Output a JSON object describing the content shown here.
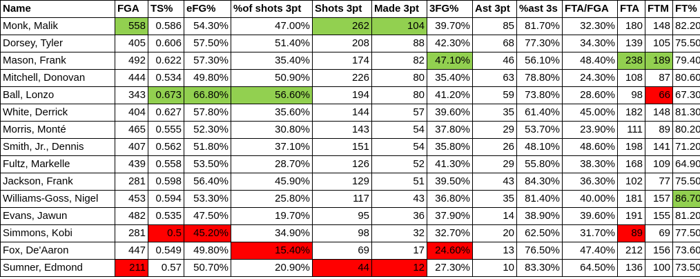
{
  "colors": {
    "highlight_best": "#92d050",
    "highlight_worst": "#ff0000"
  },
  "columns": [
    "Name",
    "FGA",
    "TS%",
    "eFG%",
    "%of shots 3pt",
    "Shots 3pt",
    "Made 3pt",
    "3FG%",
    "Ast 3pt",
    "%ast 3s",
    "FTA/FGA",
    "FTA",
    "FTM",
    "FT%"
  ],
  "rows": [
    {
      "cells": [
        "Monk, Malik",
        "558",
        "0.586",
        "54.30%",
        "47.00%",
        "262",
        "104",
        "39.70%",
        "85",
        "81.70%",
        "32.30%",
        "180",
        "148",
        "82.20%"
      ],
      "hl": {
        "1": "green",
        "5": "green",
        "6": "green"
      }
    },
    {
      "cells": [
        "Dorsey, Tyler",
        "405",
        "0.606",
        "57.50%",
        "51.40%",
        "208",
        "88",
        "42.30%",
        "68",
        "77.30%",
        "34.30%",
        "139",
        "105",
        "75.50%"
      ],
      "hl": {}
    },
    {
      "cells": [
        "Mason, Frank",
        "492",
        "0.622",
        "57.30%",
        "35.40%",
        "174",
        "82",
        "47.10%",
        "46",
        "56.10%",
        "48.40%",
        "238",
        "189",
        "79.40%"
      ],
      "hl": {
        "7": "green",
        "11": "green",
        "12": "green"
      }
    },
    {
      "cells": [
        "Mitchell, Donovan",
        "444",
        "0.534",
        "49.80%",
        "50.90%",
        "226",
        "80",
        "35.40%",
        "63",
        "78.80%",
        "24.30%",
        "108",
        "87",
        "80.60%"
      ],
      "hl": {}
    },
    {
      "cells": [
        "Ball, Lonzo",
        "343",
        "0.673",
        "66.80%",
        "56.60%",
        "194",
        "80",
        "41.20%",
        "59",
        "73.80%",
        "28.60%",
        "98",
        "66",
        "67.30%"
      ],
      "hl": {
        "2": "green",
        "3": "green",
        "4": "green",
        "12": "red"
      }
    },
    {
      "cells": [
        "White, Derrick",
        "404",
        "0.627",
        "57.80%",
        "35.60%",
        "144",
        "57",
        "39.60%",
        "35",
        "61.40%",
        "45.00%",
        "182",
        "148",
        "81.30%"
      ],
      "hl": {}
    },
    {
      "cells": [
        "Morris, Monté",
        "465",
        "0.555",
        "52.30%",
        "30.80%",
        "143",
        "54",
        "37.80%",
        "29",
        "53.70%",
        "23.90%",
        "111",
        "89",
        "80.20%"
      ],
      "hl": {}
    },
    {
      "cells": [
        "Smith, Jr., Dennis",
        "407",
        "0.562",
        "51.80%",
        "37.10%",
        "151",
        "54",
        "35.80%",
        "26",
        "48.10%",
        "48.60%",
        "198",
        "141",
        "71.20%"
      ],
      "hl": {}
    },
    {
      "cells": [
        "Fultz, Markelle",
        "439",
        "0.558",
        "53.50%",
        "28.70%",
        "126",
        "52",
        "41.30%",
        "29",
        "55.80%",
        "38.30%",
        "168",
        "109",
        "64.90%"
      ],
      "hl": {}
    },
    {
      "cells": [
        "Jackson, Frank",
        "281",
        "0.598",
        "56.40%",
        "45.90%",
        "129",
        "51",
        "39.50%",
        "43",
        "84.30%",
        "36.30%",
        "102",
        "77",
        "75.50%"
      ],
      "hl": {}
    },
    {
      "cells": [
        "Williams-Goss, Nigel",
        "453",
        "0.594",
        "53.30%",
        "25.80%",
        "117",
        "43",
        "36.80%",
        "35",
        "81.40%",
        "40.00%",
        "181",
        "157",
        "86.70%"
      ],
      "hl": {
        "13": "green"
      }
    },
    {
      "cells": [
        "Evans, Jawun",
        "482",
        "0.535",
        "47.50%",
        "19.70%",
        "95",
        "36",
        "37.90%",
        "14",
        "38.90%",
        "39.60%",
        "191",
        "155",
        "81.20%"
      ],
      "hl": {}
    },
    {
      "cells": [
        "Simmons, Kobi",
        "281",
        "0.5",
        "45.20%",
        "34.90%",
        "98",
        "32",
        "32.70%",
        "20",
        "62.50%",
        "31.70%",
        "89",
        "69",
        "77.50%"
      ],
      "hl": {
        "2": "red",
        "3": "red",
        "11": "red"
      }
    },
    {
      "cells": [
        "Fox, De'Aaron",
        "447",
        "0.549",
        "49.80%",
        "15.40%",
        "69",
        "17",
        "24.60%",
        "13",
        "76.50%",
        "47.40%",
        "212",
        "156",
        "73.60%"
      ],
      "hl": {
        "4": "red",
        "7": "red"
      }
    },
    {
      "cells": [
        "Sumner, Edmond",
        "211",
        "0.57",
        "50.70%",
        "20.90%",
        "44",
        "12",
        "27.30%",
        "10",
        "83.30%",
        "64.50%",
        "136",
        "100",
        "73.50%"
      ],
      "hl": {
        "1": "red",
        "5": "red",
        "6": "red"
      }
    }
  ]
}
